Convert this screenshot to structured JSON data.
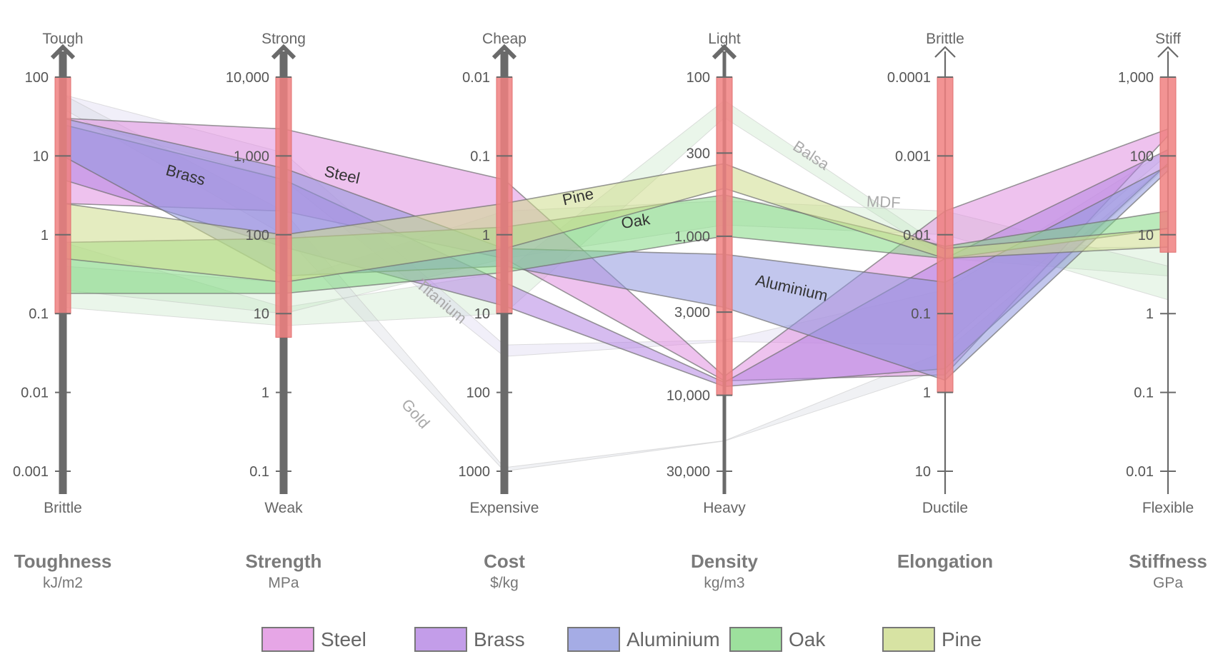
{
  "chart_data": {
    "type": "parallel-coordinates",
    "axes": [
      {
        "key": "toughness",
        "title": "Toughness",
        "unit": "kJ/m2",
        "top_label": "Tough",
        "bottom_label": "Brittle",
        "direction": "normal",
        "min": 0.001,
        "max": 100,
        "tick_values": [
          100,
          10,
          1,
          0.1,
          0.01,
          0.001
        ],
        "ticks": [
          "100",
          "10",
          "1",
          "0.1",
          "0.01",
          "0.001"
        ],
        "target": [
          0.1,
          100
        ],
        "style": "thick"
      },
      {
        "key": "strength",
        "title": "Strength",
        "unit": "MPa",
        "top_label": "Strong",
        "bottom_label": "Weak",
        "direction": "normal",
        "min": 0.1,
        "max": 10000,
        "tick_values": [
          10000,
          1000,
          100,
          10,
          1,
          0.1
        ],
        "ticks": [
          "10,000",
          "1,000",
          "100",
          "10",
          "1",
          "0.1"
        ],
        "target": [
          5,
          10000
        ],
        "style": "thick"
      },
      {
        "key": "cost",
        "title": "Cost",
        "unit": "$/kg",
        "top_label": "Cheap",
        "bottom_label": "Expensive",
        "direction": "reversed",
        "min": 0.01,
        "max": 1000,
        "tick_values": [
          0.01,
          0.1,
          1,
          10,
          100,
          1000
        ],
        "ticks": [
          "0.01",
          "0.1",
          "1",
          "10",
          "100",
          "1000"
        ],
        "target": [
          0.01,
          10
        ],
        "style": "thick"
      },
      {
        "key": "density",
        "title": "Density",
        "unit": "kg/m3",
        "top_label": "Light",
        "bottom_label": "Heavy",
        "direction": "reversed",
        "min": 100,
        "max": 30000,
        "tick_values": [
          100,
          300,
          1000,
          3000,
          10000,
          30000
        ],
        "ticks": [
          "100",
          "300",
          "1,000",
          "3,000",
          "10,000",
          "30,000"
        ],
        "target": [
          100,
          10000
        ],
        "style": "medium"
      },
      {
        "key": "elongation",
        "title": "Elongation",
        "unit": "",
        "top_label": "Brittle",
        "bottom_label": "Ductile",
        "direction": "reversed",
        "min": 0.0001,
        "max": 10,
        "tick_values": [
          0.0001,
          0.001,
          0.01,
          0.1,
          1,
          10
        ],
        "ticks": [
          "0.0001",
          "0.001",
          "0.01",
          "0.1",
          "1",
          "10"
        ],
        "target": [
          0.0001,
          1
        ],
        "style": "thin"
      },
      {
        "key": "stiffness",
        "title": "Stiffness",
        "unit": "GPa",
        "top_label": "Stiff",
        "bottom_label": "Flexible",
        "direction": "normal",
        "min": 0.01,
        "max": 1000,
        "tick_values": [
          1000,
          100,
          10,
          1,
          0.1,
          0.01
        ],
        "ticks": [
          "1,000",
          "100",
          "10",
          "1",
          "0.1",
          "0.01"
        ],
        "target": [
          6,
          1000
        ],
        "style": "thin"
      }
    ],
    "series": [
      {
        "name": "Steel",
        "color": "#e090e0",
        "label": "Steel",
        "ranges": [
          [
            2.5,
            30
          ],
          [
            200,
            2200
          ],
          [
            0.2,
            2
          ],
          [
            7600,
            8100
          ],
          [
            0.005,
            0.6
          ],
          [
            180,
            220
          ]
        ]
      },
      {
        "name": "Brass",
        "color": "#b485e3",
        "label": "Brass",
        "ranges": [
          [
            5,
            25
          ],
          [
            70,
            500
          ],
          [
            4,
            8
          ],
          [
            8300,
            8800
          ],
          [
            0.02,
            0.5
          ],
          [
            80,
            120
          ]
        ]
      },
      {
        "name": "Aluminium",
        "color": "#8f97df",
        "label": "Aluminium",
        "ranges": [
          [
            10,
            30
          ],
          [
            30,
            700
          ],
          [
            1.5,
            2.5
          ],
          [
            1300,
            2800
          ],
          [
            0.04,
            0.7
          ],
          [
            65,
            75
          ]
        ]
      },
      {
        "name": "Oak",
        "color": "#84d884",
        "label": "Oak",
        "ranges": [
          [
            0.18,
            0.8
          ],
          [
            18,
            90
          ],
          [
            0.8,
            3
          ],
          [
            550,
            1000
          ],
          [
            0.014,
            0.02
          ],
          [
            12,
            20
          ]
        ]
      },
      {
        "name": "Pine",
        "color": "#cddc8c",
        "label": "Pine",
        "ranges": [
          [
            0.5,
            2.5
          ],
          [
            25,
            100
          ],
          [
            0.4,
            1.5
          ],
          [
            350,
            500
          ],
          [
            0.015,
            0.02
          ],
          [
            7,
            12
          ]
        ]
      }
    ],
    "ghost_series": [
      {
        "name": "Balsa",
        "label": "Balsa",
        "color": "#bde3bd",
        "ranges": [
          [
            0.12,
            0.8
          ],
          [
            7,
            12
          ],
          [
            3,
            10
          ],
          [
            140,
            180
          ],
          [
            0.015,
            0.02
          ],
          [
            3,
            7
          ]
        ]
      },
      {
        "name": "MDF",
        "label": "MDF",
        "color": "#bde3bd",
        "ranges": [
          [
            0.2,
            0.4
          ],
          [
            10,
            25
          ],
          [
            0.5,
            2
          ],
          [
            600,
            850
          ],
          [
            0.005,
            0.01
          ],
          [
            1.5,
            4
          ]
        ]
      },
      {
        "name": "Titanium",
        "label": "Titanium",
        "color": "#d3cdeb",
        "ranges": [
          [
            30,
            60
          ],
          [
            500,
            1100
          ],
          [
            25,
            35
          ],
          [
            4500,
            4600
          ],
          [
            0.05,
            0.25
          ],
          [
            105,
            120
          ]
        ]
      },
      {
        "name": "Gold",
        "label": "Gold",
        "color": "#cfd2dc",
        "ranges": [
          [
            40,
            60
          ],
          [
            100,
            200
          ],
          [
            900,
            1000
          ],
          [
            19300,
            19400
          ],
          [
            0.3,
            0.5
          ],
          [
            75,
            80
          ]
        ]
      }
    ],
    "legend": {
      "placement": "bottom",
      "items": [
        "Steel",
        "Brass",
        "Aluminium",
        "Oak",
        "Pine"
      ]
    }
  }
}
